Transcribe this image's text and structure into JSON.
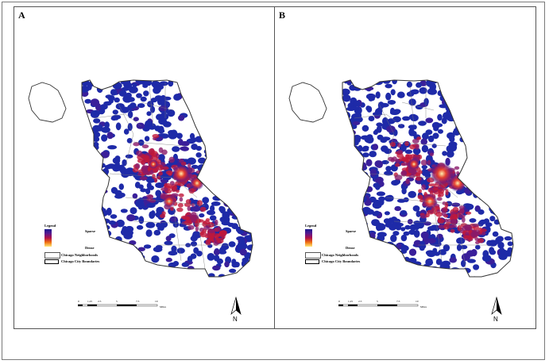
{
  "panels": [
    {
      "letter": "A"
    },
    {
      "letter": "B"
    }
  ],
  "legend": {
    "title": "Legend",
    "sparse_label": "Sparse",
    "dense_label": "Dense",
    "neighborhoods_label": "Chicago Neighborhoods",
    "boundaries_label": "Chicago City Boundaries",
    "ramp_colors": [
      "#1b1b8f",
      "#5a1a90",
      "#b0104a",
      "#f07010",
      "#ffe878"
    ]
  },
  "north_arrow": {
    "label": "N"
  },
  "scale_bar": {
    "ticks": [
      "0",
      "1.25",
      "2.5",
      "5",
      "7.5",
      "10"
    ],
    "unit": "Miles"
  },
  "colors": {
    "density_base": "#1e2aa8",
    "hotspot_core": "#fff3b0",
    "hotspot_mid": "#e8402a",
    "hotspot_outer": "#8a1a6a",
    "boundary": "#333333"
  }
}
